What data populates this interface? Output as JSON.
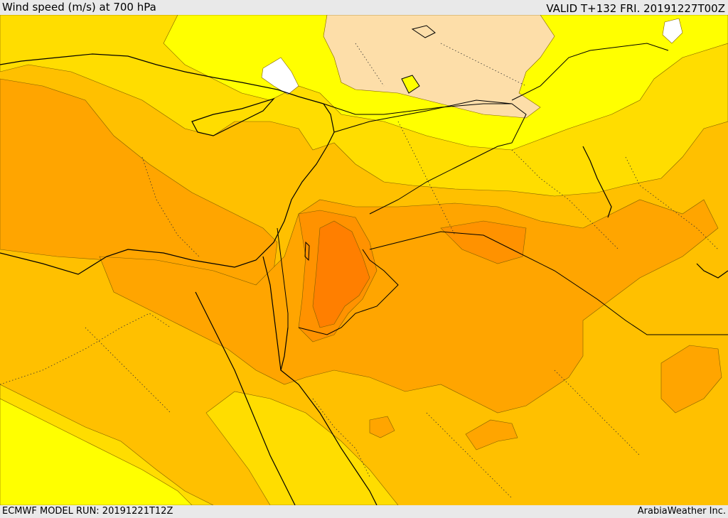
{
  "header": {
    "title": "Wind speed (m/s) at 700 hPa",
    "valid": "VALID T+132 FRI. 20191227T00Z"
  },
  "footer": {
    "model_run": "ECMWF MODEL RUN: 20191221T12Z",
    "credit": "ArabiaWeather Inc."
  },
  "palette": {
    "white": "#ffffff",
    "tan": "#fddea9",
    "yellow": "#ffff00",
    "gold": "#ffdd00",
    "light_orange": "#ffc000",
    "orange": "#ffa500",
    "dark_orange": "#ff9200",
    "deep_orange": "#ff7f00",
    "coastline": "#000000",
    "border": "#000000"
  }
}
